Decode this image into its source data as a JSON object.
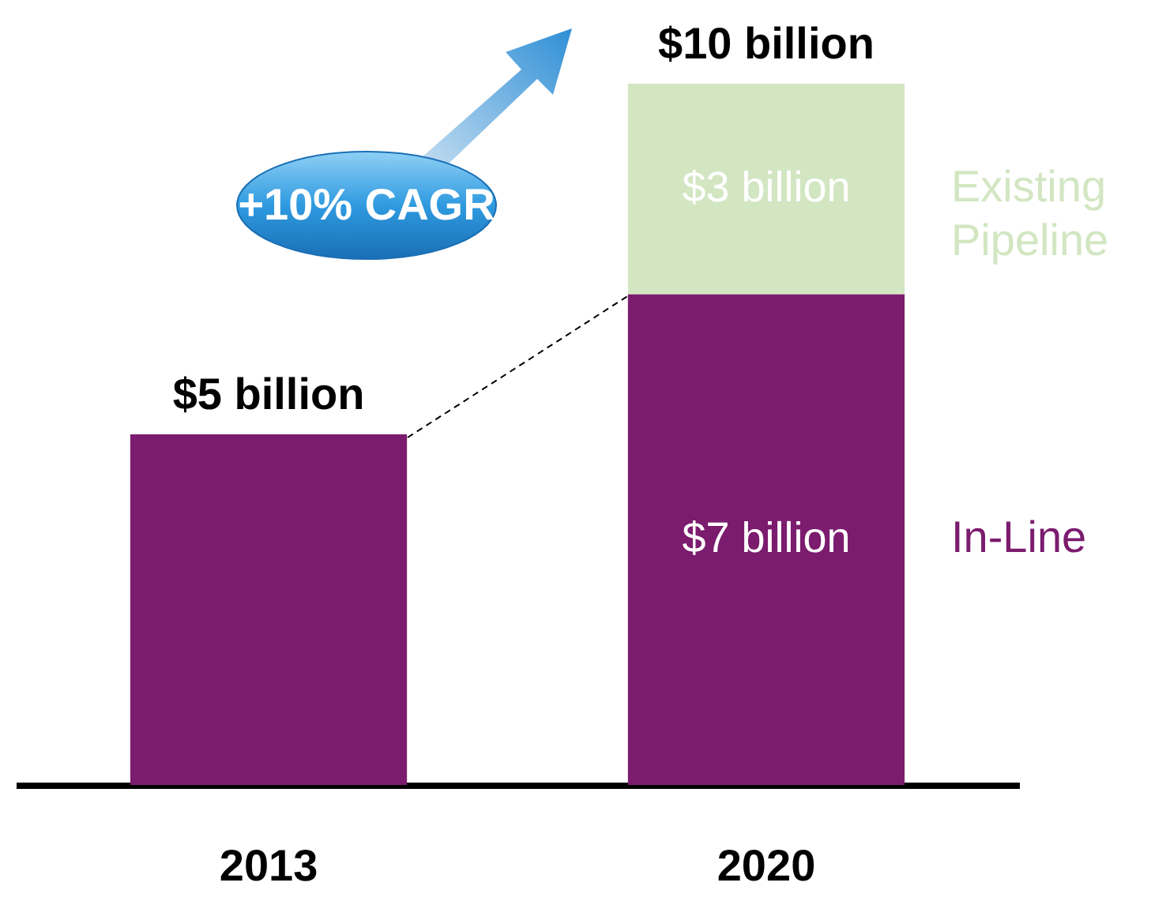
{
  "chart_data": {
    "type": "bar",
    "stacked": true,
    "categories": [
      "2013",
      "2020"
    ],
    "series": [
      {
        "name": "In-Line",
        "color": "#7b1c6e",
        "values": [
          5,
          7
        ],
        "value_labels": [
          null,
          "$7 billion"
        ]
      },
      {
        "name": "Existing Pipeline",
        "color": "#d2e6c2",
        "values": [
          null,
          3
        ],
        "value_labels": [
          null,
          "$3 billion"
        ]
      }
    ],
    "totals": [
      "$5 billion",
      "$10 billion"
    ],
    "annotations": [
      "+10% CAGR"
    ],
    "legend": false
  }
}
